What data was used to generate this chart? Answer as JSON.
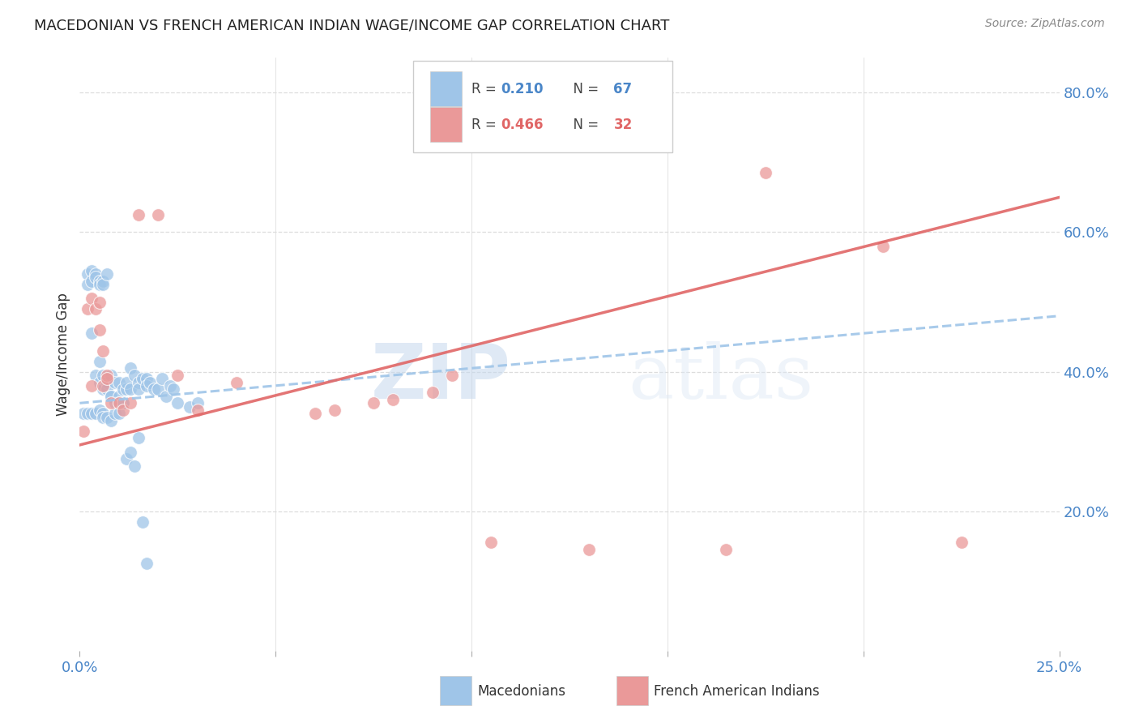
{
  "title": "MACEDONIAN VS FRENCH AMERICAN INDIAN WAGE/INCOME GAP CORRELATION CHART",
  "source": "Source: ZipAtlas.com",
  "ylabel": "Wage/Income Gap",
  "watermark_zip": "ZIP",
  "watermark_atlas": "atlas",
  "blue_color": "#9fc5e8",
  "pink_color": "#ea9999",
  "blue_line_color": "#9fc5e8",
  "pink_line_color": "#e06666",
  "macedonians_label": "Macedonians",
  "french_label": "French American Indians",
  "mac_x": [
    0.001,
    0.002,
    0.002,
    0.003,
    0.003,
    0.003,
    0.004,
    0.004,
    0.004,
    0.005,
    0.005,
    0.005,
    0.005,
    0.006,
    0.006,
    0.006,
    0.006,
    0.007,
    0.007,
    0.007,
    0.008,
    0.008,
    0.008,
    0.009,
    0.009,
    0.01,
    0.01,
    0.01,
    0.011,
    0.011,
    0.012,
    0.012,
    0.013,
    0.013,
    0.014,
    0.015,
    0.015,
    0.016,
    0.017,
    0.017,
    0.018,
    0.019,
    0.02,
    0.021,
    0.022,
    0.023,
    0.024,
    0.025,
    0.028,
    0.03,
    0.002,
    0.003,
    0.004,
    0.005,
    0.006,
    0.006,
    0.007,
    0.008,
    0.009,
    0.01,
    0.011,
    0.012,
    0.013,
    0.014,
    0.015,
    0.016,
    0.017
  ],
  "mac_y": [
    0.34,
    0.54,
    0.525,
    0.545,
    0.53,
    0.455,
    0.54,
    0.535,
    0.395,
    0.53,
    0.525,
    0.415,
    0.385,
    0.53,
    0.525,
    0.395,
    0.375,
    0.54,
    0.385,
    0.375,
    0.365,
    0.395,
    0.365,
    0.385,
    0.355,
    0.385,
    0.365,
    0.355,
    0.375,
    0.355,
    0.375,
    0.385,
    0.375,
    0.405,
    0.395,
    0.385,
    0.375,
    0.39,
    0.39,
    0.38,
    0.385,
    0.375,
    0.375,
    0.39,
    0.365,
    0.38,
    0.375,
    0.355,
    0.35,
    0.355,
    0.34,
    0.34,
    0.34,
    0.345,
    0.34,
    0.335,
    0.335,
    0.33,
    0.34,
    0.34,
    0.355,
    0.275,
    0.285,
    0.265,
    0.305,
    0.185,
    0.125
  ],
  "french_x": [
    0.001,
    0.002,
    0.003,
    0.003,
    0.004,
    0.005,
    0.005,
    0.006,
    0.006,
    0.007,
    0.007,
    0.008,
    0.01,
    0.011,
    0.013,
    0.015,
    0.02,
    0.025,
    0.03,
    0.04,
    0.06,
    0.065,
    0.075,
    0.08,
    0.09,
    0.095,
    0.105,
    0.13,
    0.165,
    0.175,
    0.205,
    0.225
  ],
  "french_y": [
    0.315,
    0.49,
    0.505,
    0.38,
    0.49,
    0.5,
    0.46,
    0.43,
    0.38,
    0.395,
    0.39,
    0.355,
    0.355,
    0.345,
    0.355,
    0.625,
    0.625,
    0.395,
    0.345,
    0.385,
    0.34,
    0.345,
    0.355,
    0.36,
    0.37,
    0.395,
    0.155,
    0.145,
    0.145,
    0.685,
    0.58,
    0.155
  ],
  "xlim": [
    0.0,
    0.25
  ],
  "ylim": [
    0.0,
    0.85
  ],
  "ytick_vals": [
    0.2,
    0.4,
    0.6,
    0.8
  ],
  "ytick_labels": [
    "20.0%",
    "40.0%",
    "60.0%",
    "80.0%"
  ],
  "xtick_vals": [
    0.0,
    0.05,
    0.1,
    0.15,
    0.2,
    0.25
  ],
  "xtick_labels": [
    "0.0%",
    "",
    "",
    "",
    "",
    "25.0%"
  ]
}
